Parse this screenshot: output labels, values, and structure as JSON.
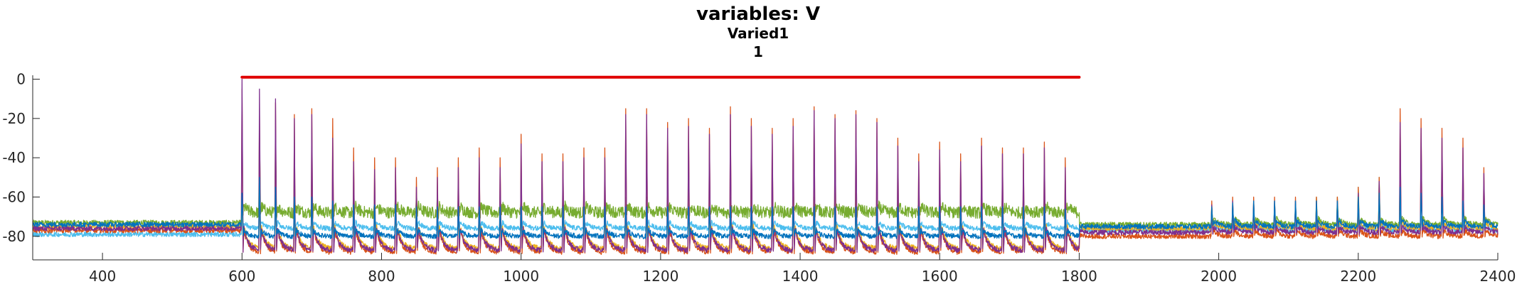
{
  "chart_data": {
    "type": "line",
    "title": "variables: V",
    "subtitle_lines": [
      "Varied1",
      "1"
    ],
    "xlabel": "",
    "ylabel": "",
    "xlim": [
      300,
      2400
    ],
    "ylim": [
      -92,
      2
    ],
    "x_ticks": [
      400,
      600,
      800,
      1000,
      1200,
      1400,
      1600,
      1800,
      2000,
      2200,
      2400
    ],
    "y_ticks": [
      0,
      -20,
      -40,
      -60,
      -80
    ],
    "grid": false,
    "legend": "none",
    "stimulus_bar": {
      "x": [
        600,
        1800
      ],
      "y": 1,
      "color": "#e00000"
    },
    "event_times": [
      600,
      625,
      648,
      675,
      700,
      730,
      760,
      790,
      820,
      850,
      880,
      910,
      940,
      970,
      1000,
      1030,
      1060,
      1090,
      1120,
      1150,
      1180,
      1210,
      1240,
      1270,
      1300,
      1330,
      1360,
      1390,
      1420,
      1450,
      1480,
      1510,
      1540,
      1570,
      1600,
      1630,
      1660,
      1690,
      1720,
      1750,
      1780,
      1990,
      2020,
      2050,
      2080,
      2110,
      2140,
      2170,
      2200,
      2230,
      2260,
      2290,
      2320,
      2350,
      2380
    ],
    "series": [
      {
        "color": "#77ac30",
        "baseline_before": -73,
        "baseline_during": -68,
        "baseline_after": -74,
        "spike_peaks": [
          -62,
          -25,
          -30,
          -45,
          -45,
          -55,
          -55,
          -60,
          -55,
          -58,
          -58,
          -60,
          -60,
          -58,
          -58,
          -60,
          -60,
          -58,
          -58,
          -60,
          -60,
          -58,
          -58,
          -60,
          -60,
          -58,
          -58,
          -60,
          -60,
          -58,
          -58,
          -60,
          -60,
          -58,
          -58,
          -60,
          -60,
          -58,
          -58,
          -60,
          -63,
          -65,
          -65,
          -65,
          -65,
          -65,
          -60,
          -60,
          -55,
          -50,
          -40,
          -45,
          -50,
          -55,
          -60
        ]
      },
      {
        "color": "#4dbeee",
        "baseline_before": -79,
        "baseline_during": -76,
        "baseline_after": -77,
        "spike_peaks": [
          -60,
          -60,
          -60,
          -65,
          -68,
          -68,
          -70,
          -70,
          -70,
          -70,
          -70,
          -70,
          -70,
          -70,
          -70,
          -70,
          -70,
          -70,
          -70,
          -70,
          -70,
          -70,
          -70,
          -70,
          -70,
          -70,
          -70,
          -70,
          -70,
          -70,
          -70,
          -70,
          -70,
          -70,
          -70,
          -70,
          -70,
          -70,
          -70,
          -70,
          -72,
          -74,
          -74,
          -74,
          -74,
          -74,
          -73,
          -73,
          -72,
          -70,
          -68,
          -70,
          -70,
          -72,
          -74
        ]
      },
      {
        "color": "#edb120",
        "baseline_before": -75,
        "baseline_during": -86,
        "baseline_after": -76,
        "spike_peaks": [
          -60,
          -40,
          -50,
          -55,
          -55,
          -60,
          -60,
          -60,
          -62,
          -62,
          -62,
          -62,
          -62,
          -62,
          -62,
          -62,
          -62,
          -62,
          -62,
          -62,
          -62,
          -62,
          -62,
          -62,
          -62,
          -62,
          -62,
          -62,
          -62,
          -62,
          -62,
          -62,
          -62,
          -62,
          -62,
          -62,
          -62,
          -62,
          -62,
          -62,
          -50,
          -64,
          -64,
          -64,
          -64,
          -64,
          -62,
          -62,
          -60,
          -55,
          -45,
          -50,
          -55,
          -58,
          -62
        ]
      },
      {
        "color": "#d95319",
        "baseline_before": -77,
        "baseline_during": -88,
        "baseline_after": -80,
        "spike_peaks": [
          -5,
          -15,
          -12,
          -18,
          -15,
          -20,
          -35,
          -40,
          -40,
          -50,
          -45,
          -40,
          -35,
          -40,
          -28,
          -38,
          -38,
          -35,
          -35,
          -15,
          -15,
          -22,
          -20,
          -25,
          -14,
          -20,
          -25,
          -20,
          -14,
          -18,
          -16,
          -20,
          -30,
          -38,
          -32,
          -38,
          -30,
          -35,
          -35,
          -32,
          -40,
          -62,
          -60,
          -60,
          -60,
          -60,
          -60,
          -60,
          -55,
          -50,
          -15,
          -20,
          -25,
          -30,
          -45
        ]
      },
      {
        "color": "#7e2f8e",
        "baseline_before": -76,
        "baseline_during": -87,
        "baseline_after": -78,
        "spike_peaks": [
          0,
          -5,
          -10,
          -20,
          -18,
          -30,
          -42,
          -46,
          -45,
          -55,
          -50,
          -45,
          -40,
          -45,
          -33,
          -42,
          -42,
          -40,
          -40,
          -18,
          -18,
          -25,
          -24,
          -28,
          -18,
          -24,
          -28,
          -24,
          -16,
          -20,
          -18,
          -22,
          -34,
          -42,
          -36,
          -42,
          -34,
          -38,
          -38,
          -35,
          -45,
          -64,
          -62,
          -62,
          -62,
          -62,
          -62,
          -62,
          -58,
          -52,
          -22,
          -25,
          -30,
          -35,
          -48
        ]
      },
      {
        "color": "#0072bd",
        "baseline_before": -74,
        "baseline_during": -80,
        "baseline_after": -75,
        "spike_peaks": [
          -58,
          -50,
          -55,
          -60,
          -60,
          -62,
          -64,
          -64,
          -64,
          -65,
          -65,
          -65,
          -65,
          -65,
          -65,
          -65,
          -65,
          -65,
          -65,
          -65,
          -65,
          -65,
          -65,
          -65,
          -65,
          -65,
          -65,
          -65,
          -65,
          -65,
          -65,
          -65,
          -65,
          -65,
          -65,
          -65,
          -65,
          -65,
          -65,
          -65,
          -66,
          -65,
          -63,
          -62,
          -62,
          -62,
          -62,
          -62,
          -60,
          -58,
          -55,
          -58,
          -60,
          -62,
          -64
        ]
      }
    ]
  }
}
